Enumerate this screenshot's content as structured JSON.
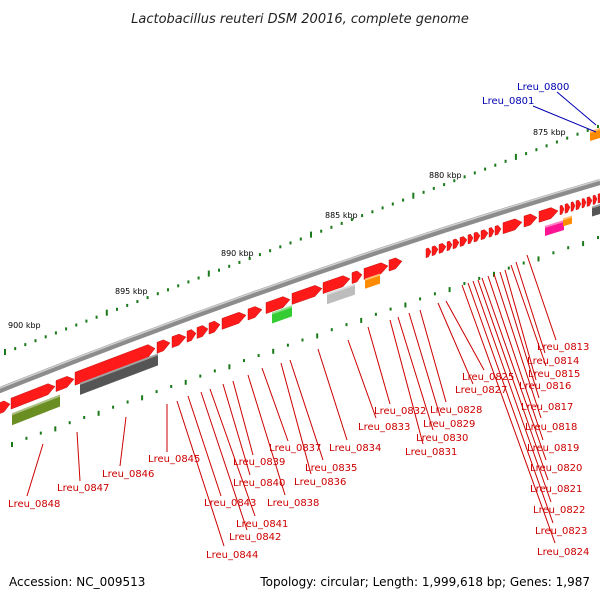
{
  "title": "Lactobacillus reuteri DSM 20016, complete genome",
  "footer": {
    "accession": "Accession: NC_009513",
    "summary": "Topology: circular; Length: 1,999,618 bp; Genes: 1,987"
  },
  "ruler_labels": [
    "875 kbp",
    "880 kbp",
    "885 kbp",
    "890 kbp",
    "895 kbp",
    "900 kbp"
  ],
  "colors": {
    "backbone": "#8c8c8c",
    "cds_forward": "#ff1a1a",
    "label_red": "#cc0000",
    "label_blue": "#0000b0",
    "tick_green": "#1a7a1a",
    "olive": "#6b8e23",
    "dark_gray": "#555555",
    "light_gray": "#bdbdbd",
    "orange": "#ff8c00",
    "green": "#33cc33",
    "magenta": "#ff1493"
  },
  "labels_blue": [
    "Lreu_0800",
    "Lreu_0801"
  ],
  "labels_right": [
    "Lreu_0813",
    "Lreu_0814",
    "Lreu_0815",
    "Lreu_0816",
    "Lreu_0817",
    "Lreu_0818",
    "Lreu_0819",
    "Lreu_0820",
    "Lreu_0821",
    "Lreu_0822",
    "Lreu_0823",
    "Lreu_0824"
  ],
  "labels_middle": [
    "Lreu_0825",
    "Lreu_0827",
    "Lreu_0828",
    "Lreu_0829",
    "Lreu_0830",
    "Lreu_0831",
    "Lreu_0832",
    "Lreu_0833",
    "Lreu_0834",
    "Lreu_0835",
    "Lreu_0836",
    "Lreu_0837",
    "Lreu_0838",
    "Lreu_0839",
    "Lreu_0840",
    "Lreu_0841",
    "Lreu_0842",
    "Lreu_0843",
    "Lreu_0844",
    "Lreu_0845",
    "Lreu_0846",
    "Lreu_0847",
    "Lreu_0848"
  ]
}
